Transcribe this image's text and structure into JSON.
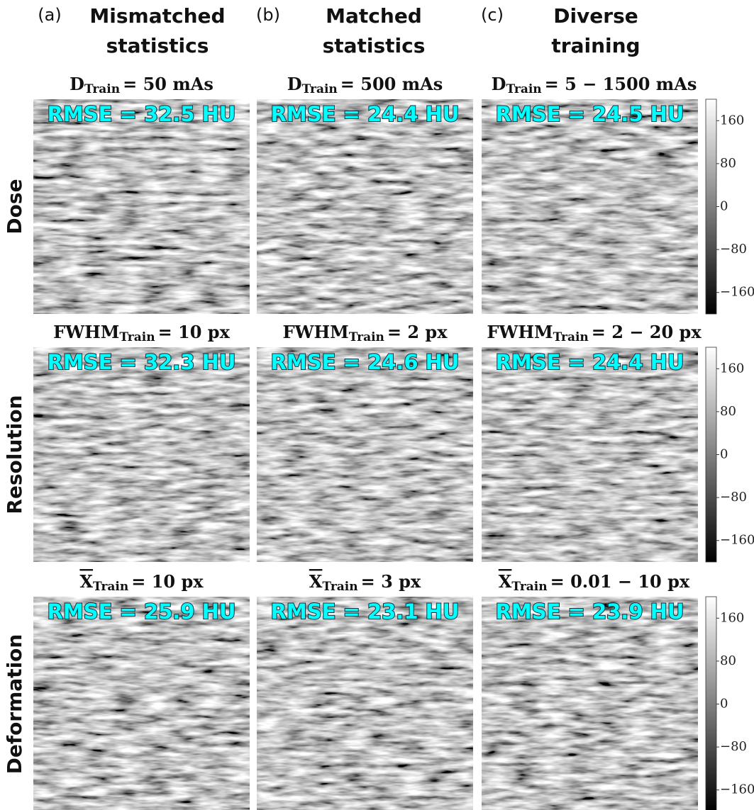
{
  "columns": [
    {
      "letter": "(a)",
      "title": [
        "Mismatched",
        "statistics"
      ]
    },
    {
      "letter": "(b)",
      "title": [
        "Matched",
        "statistics"
      ]
    },
    {
      "letter": "(c)",
      "title": [
        "Diverse",
        "training"
      ]
    }
  ],
  "rows": [
    {
      "label": "Dose",
      "symbol": "D",
      "subscript": "Train",
      "overline": false,
      "panels": [
        {
          "setting": "= 50 mAs",
          "rmse": "RMSE = 32.5 HU"
        },
        {
          "setting": "= 500 mAs",
          "rmse": "RMSE = 24.4 HU"
        },
        {
          "setting": "= 5 − 1500 mAs",
          "rmse": "RMSE = 24.5 HU"
        }
      ]
    },
    {
      "label": "Resolution",
      "symbol": "FWHM",
      "subscript": "Train",
      "overline": false,
      "panels": [
        {
          "setting": "= 10 px",
          "rmse": "RMSE = 32.3 HU"
        },
        {
          "setting": "= 2 px",
          "rmse": "RMSE = 24.6 HU"
        },
        {
          "setting": "= 2 − 20 px",
          "rmse": "RMSE = 24.4 HU"
        }
      ]
    },
    {
      "label": "Deformation",
      "symbol": "X",
      "subscript": "Train",
      "overline": true,
      "panels": [
        {
          "setting": "= 10 px",
          "rmse": "RMSE = 25.9 HU"
        },
        {
          "setting": "= 3 px",
          "rmse": "RMSE = 23.1 HU"
        },
        {
          "setting": "= 0.01 − 10 px",
          "rmse": "RMSE = 23.9 HU"
        }
      ]
    }
  ],
  "colorbar": {
    "range": [
      -200,
      200
    ],
    "ticks": [
      160,
      80,
      0,
      {
        "value": -80,
        "label": "−80"
      },
      {
        "value": -160,
        "label": "−160"
      }
    ]
  }
}
